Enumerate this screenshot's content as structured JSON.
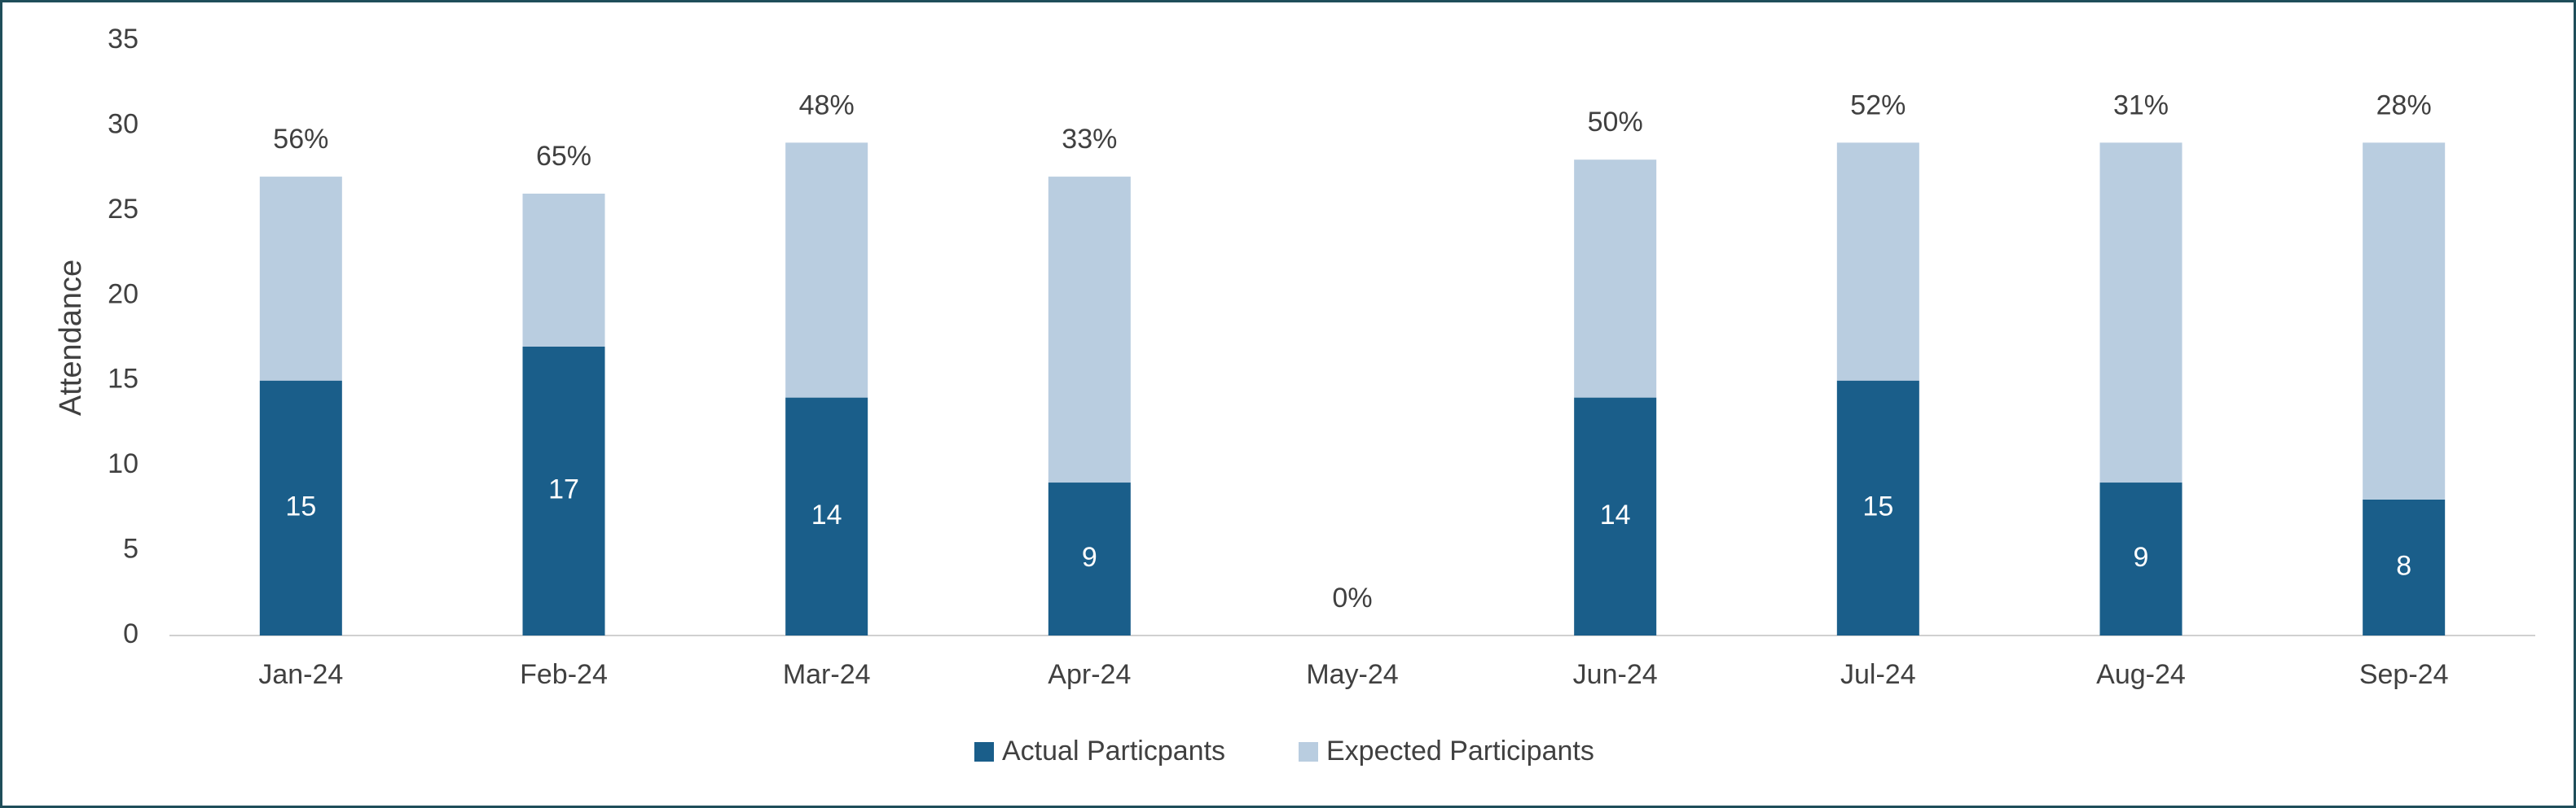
{
  "chart_data": {
    "type": "stacked_bar",
    "y_label": "Attendance",
    "categories": [
      "Jan-24",
      "Feb-24",
      "Mar-24",
      "Apr-24",
      "May-24",
      "Jun-24",
      "Jul-24",
      "Aug-24",
      "Sep-24"
    ],
    "series": [
      {
        "name": "Actual Particpants",
        "color": "#1a5e8a",
        "values": [
          15,
          17,
          14,
          9,
          0,
          14,
          15,
          9,
          8
        ]
      },
      {
        "name": "Expected Participants",
        "color": "#b9cde0",
        "values": [
          12,
          9,
          15,
          18,
          0,
          14,
          14,
          20,
          21
        ]
      }
    ],
    "rate_labels": [
      "56%",
      "65%",
      "48%",
      "33%",
      "0%",
      "50%",
      "52%",
      "31%",
      "28%"
    ],
    "ylim": [
      0,
      35
    ],
    "yticks": [
      0,
      5,
      10,
      15,
      20,
      25,
      30,
      35
    ],
    "grid": false,
    "legend": "bottom"
  }
}
